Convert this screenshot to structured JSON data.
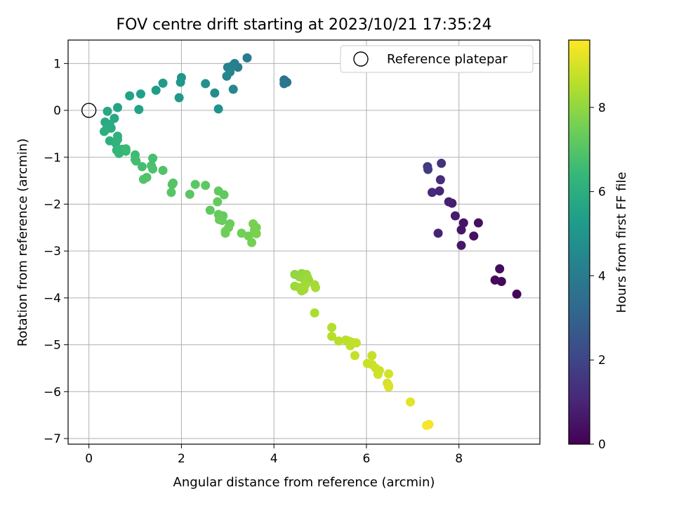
{
  "chart_data": {
    "type": "scatter",
    "title": "FOV centre drift starting at 2023/10/21 17:35:24",
    "xlabel": "Angular distance from reference (arcmin)",
    "ylabel": "Rotation from reference (arcmin)",
    "xlim": [
      -0.45,
      9.75
    ],
    "ylim": [
      -7.12,
      1.5
    ],
    "xticks": [
      0,
      2,
      4,
      6,
      8
    ],
    "xtick_labels": [
      "0",
      "2",
      "4",
      "6",
      "8"
    ],
    "yticks": [
      1,
      0,
      -1,
      -2,
      -3,
      -4,
      -5,
      -6,
      -7
    ],
    "ytick_labels": [
      "1",
      "0",
      "−1",
      "−2",
      "−3",
      "−4",
      "−5",
      "−6",
      "−7"
    ],
    "grid": true,
    "legend": {
      "placement": "top-right",
      "entries": [
        "Reference platepar"
      ]
    },
    "reference_point": {
      "x": 0,
      "y": 0
    },
    "colorbar": {
      "label": "Hours from first FF file",
      "colormap": "viridis",
      "range": [
        0,
        9.6
      ],
      "ticks": [
        0,
        2,
        4,
        6,
        8
      ],
      "tick_labels": [
        "0",
        "2",
        "4",
        "6",
        "8"
      ]
    },
    "colormap_stops": [
      "#440154",
      "#482878",
      "#3e4989",
      "#31688e",
      "#26828e",
      "#1f9e89",
      "#35b779",
      "#6ece58",
      "#b5de2b",
      "#fde725"
    ],
    "points": [
      {
        "x": 9.25,
        "y": -3.92,
        "h": 0.1
      },
      {
        "x": 8.92,
        "y": -3.65,
        "h": 0.2
      },
      {
        "x": 8.78,
        "y": -3.62,
        "h": 0.25
      },
      {
        "x": 8.88,
        "y": -3.38,
        "h": 0.3
      },
      {
        "x": 8.42,
        "y": -2.4,
        "h": 0.4
      },
      {
        "x": 8.32,
        "y": -2.68,
        "h": 0.45
      },
      {
        "x": 8.1,
        "y": -2.4,
        "h": 0.5
      },
      {
        "x": 8.05,
        "y": -2.55,
        "h": 0.55
      },
      {
        "x": 8.05,
        "y": -2.88,
        "h": 0.6
      },
      {
        "x": 7.92,
        "y": -2.25,
        "h": 0.7
      },
      {
        "x": 7.85,
        "y": -1.98,
        "h": 0.8
      },
      {
        "x": 7.78,
        "y": -1.95,
        "h": 0.85
      },
      {
        "x": 7.55,
        "y": -2.62,
        "h": 0.9
      },
      {
        "x": 7.58,
        "y": -1.72,
        "h": 1.0
      },
      {
        "x": 7.42,
        "y": -1.75,
        "h": 1.1
      },
      {
        "x": 7.6,
        "y": -1.48,
        "h": 1.2
      },
      {
        "x": 7.62,
        "y": -1.13,
        "h": 1.4
      },
      {
        "x": 7.32,
        "y": -1.2,
        "h": 1.6
      },
      {
        "x": 7.33,
        "y": -1.26,
        "h": 1.7
      },
      {
        "x": 4.22,
        "y": 0.65,
        "h": 3.6
      },
      {
        "x": 4.28,
        "y": 0.6,
        "h": 3.7
      },
      {
        "x": 4.22,
        "y": 0.57,
        "h": 3.8
      },
      {
        "x": 3.42,
        "y": 1.12,
        "h": 4.0
      },
      {
        "x": 3.22,
        "y": 0.92,
        "h": 4.1
      },
      {
        "x": 3.15,
        "y": 1.0,
        "h": 4.15
      },
      {
        "x": 3.1,
        "y": 0.95,
        "h": 4.2
      },
      {
        "x": 3.0,
        "y": 0.92,
        "h": 4.3
      },
      {
        "x": 3.05,
        "y": 0.82,
        "h": 4.35
      },
      {
        "x": 2.98,
        "y": 0.73,
        "h": 4.4
      },
      {
        "x": 3.12,
        "y": 0.45,
        "h": 4.5
      },
      {
        "x": 2.72,
        "y": 0.37,
        "h": 4.7
      },
      {
        "x": 2.52,
        "y": 0.57,
        "h": 4.8
      },
      {
        "x": 2.8,
        "y": 0.03,
        "h": 4.9
      },
      {
        "x": 2.0,
        "y": 0.7,
        "h": 5.0
      },
      {
        "x": 1.98,
        "y": 0.6,
        "h": 5.05
      },
      {
        "x": 1.95,
        "y": 0.27,
        "h": 5.1
      },
      {
        "x": 1.6,
        "y": 0.58,
        "h": 5.2
      },
      {
        "x": 1.45,
        "y": 0.43,
        "h": 5.3
      },
      {
        "x": 1.12,
        "y": 0.35,
        "h": 5.4
      },
      {
        "x": 0.88,
        "y": 0.31,
        "h": 5.5
      },
      {
        "x": 1.08,
        "y": 0.02,
        "h": 5.55
      },
      {
        "x": 0.62,
        "y": 0.06,
        "h": 5.6
      },
      {
        "x": 0.4,
        "y": -0.02,
        "h": 5.7
      },
      {
        "x": 0.55,
        "y": -0.17,
        "h": 5.75
      },
      {
        "x": 0.35,
        "y": -0.25,
        "h": 5.8
      },
      {
        "x": 0.45,
        "y": -0.3,
        "h": 5.85
      },
      {
        "x": 0.48,
        "y": -0.38,
        "h": 5.9
      },
      {
        "x": 0.38,
        "y": -0.4,
        "h": 5.95
      },
      {
        "x": 0.33,
        "y": -0.45,
        "h": 6.0
      },
      {
        "x": 0.45,
        "y": -0.65,
        "h": 6.05
      },
      {
        "x": 0.62,
        "y": -0.55,
        "h": 6.1
      },
      {
        "x": 0.62,
        "y": -0.62,
        "h": 6.15
      },
      {
        "x": 0.58,
        "y": -0.7,
        "h": 6.2
      },
      {
        "x": 0.6,
        "y": -0.85,
        "h": 6.3
      },
      {
        "x": 0.65,
        "y": -0.92,
        "h": 6.35
      },
      {
        "x": 0.72,
        "y": -0.83,
        "h": 6.4
      },
      {
        "x": 0.8,
        "y": -0.87,
        "h": 6.45
      },
      {
        "x": 0.8,
        "y": -0.82,
        "h": 6.5
      },
      {
        "x": 1.0,
        "y": -0.95,
        "h": 6.55
      },
      {
        "x": 1.0,
        "y": -1.05,
        "h": 6.6
      },
      {
        "x": 1.02,
        "y": -1.08,
        "h": 6.65
      },
      {
        "x": 1.15,
        "y": -1.2,
        "h": 6.7
      },
      {
        "x": 1.38,
        "y": -1.02,
        "h": 6.75
      },
      {
        "x": 1.35,
        "y": -1.18,
        "h": 6.8
      },
      {
        "x": 1.38,
        "y": -1.25,
        "h": 6.85
      },
      {
        "x": 1.6,
        "y": -1.28,
        "h": 6.9
      },
      {
        "x": 1.25,
        "y": -1.43,
        "h": 6.92
      },
      {
        "x": 1.18,
        "y": -1.47,
        "h": 6.95
      },
      {
        "x": 1.82,
        "y": -1.55,
        "h": 7.0
      },
      {
        "x": 1.8,
        "y": -1.58,
        "h": 7.02
      },
      {
        "x": 1.78,
        "y": -1.75,
        "h": 7.05
      },
      {
        "x": 2.18,
        "y": -1.79,
        "h": 7.1
      },
      {
        "x": 2.3,
        "y": -1.58,
        "h": 7.12
      },
      {
        "x": 2.52,
        "y": -1.6,
        "h": 7.15
      },
      {
        "x": 2.62,
        "y": -2.13,
        "h": 7.2
      },
      {
        "x": 2.8,
        "y": -1.72,
        "h": 7.22
      },
      {
        "x": 2.92,
        "y": -1.8,
        "h": 7.25
      },
      {
        "x": 2.78,
        "y": -1.95,
        "h": 7.28
      },
      {
        "x": 2.8,
        "y": -2.22,
        "h": 7.3
      },
      {
        "x": 2.9,
        "y": -2.25,
        "h": 7.32
      },
      {
        "x": 2.82,
        "y": -2.33,
        "h": 7.35
      },
      {
        "x": 2.88,
        "y": -2.35,
        "h": 7.38
      },
      {
        "x": 3.05,
        "y": -2.42,
        "h": 7.4
      },
      {
        "x": 3.02,
        "y": -2.5,
        "h": 7.42
      },
      {
        "x": 2.95,
        "y": -2.58,
        "h": 7.45
      },
      {
        "x": 2.95,
        "y": -2.62,
        "h": 7.48
      },
      {
        "x": 3.3,
        "y": -2.62,
        "h": 7.5
      },
      {
        "x": 3.45,
        "y": -2.68,
        "h": 7.52
      },
      {
        "x": 3.52,
        "y": -2.82,
        "h": 7.55
      },
      {
        "x": 3.55,
        "y": -2.42,
        "h": 7.58
      },
      {
        "x": 3.58,
        "y": -2.55,
        "h": 7.6
      },
      {
        "x": 3.62,
        "y": -2.5,
        "h": 7.62
      },
      {
        "x": 3.62,
        "y": -2.63,
        "h": 7.65
      },
      {
        "x": 4.45,
        "y": -3.5,
        "h": 8.0
      },
      {
        "x": 4.6,
        "y": -3.48,
        "h": 8.02
      },
      {
        "x": 4.55,
        "y": -3.55,
        "h": 8.05
      },
      {
        "x": 4.7,
        "y": -3.5,
        "h": 8.08
      },
      {
        "x": 4.65,
        "y": -3.6,
        "h": 8.1
      },
      {
        "x": 4.75,
        "y": -3.62,
        "h": 8.12
      },
      {
        "x": 4.72,
        "y": -3.55,
        "h": 8.15
      },
      {
        "x": 4.45,
        "y": -3.75,
        "h": 8.18
      },
      {
        "x": 4.55,
        "y": -3.78,
        "h": 8.2
      },
      {
        "x": 4.6,
        "y": -3.85,
        "h": 8.22
      },
      {
        "x": 4.68,
        "y": -3.72,
        "h": 8.25
      },
      {
        "x": 4.65,
        "y": -3.82,
        "h": 8.28
      },
      {
        "x": 4.88,
        "y": -3.72,
        "h": 8.3
      },
      {
        "x": 4.9,
        "y": -3.78,
        "h": 8.32
      },
      {
        "x": 4.88,
        "y": -4.32,
        "h": 8.4
      },
      {
        "x": 5.25,
        "y": -4.63,
        "h": 8.5
      },
      {
        "x": 5.25,
        "y": -4.82,
        "h": 8.55
      },
      {
        "x": 5.4,
        "y": -4.92,
        "h": 8.6
      },
      {
        "x": 5.55,
        "y": -4.9,
        "h": 8.62
      },
      {
        "x": 5.62,
        "y": -4.92,
        "h": 8.65
      },
      {
        "x": 5.65,
        "y": -5.02,
        "h": 8.68
      },
      {
        "x": 5.7,
        "y": -4.95,
        "h": 8.7
      },
      {
        "x": 5.78,
        "y": -4.96,
        "h": 8.72
      },
      {
        "x": 5.75,
        "y": -5.23,
        "h": 8.75
      },
      {
        "x": 6.12,
        "y": -5.23,
        "h": 8.8
      },
      {
        "x": 6.02,
        "y": -5.4,
        "h": 8.82
      },
      {
        "x": 6.12,
        "y": -5.42,
        "h": 8.85
      },
      {
        "x": 6.2,
        "y": -5.5,
        "h": 8.88
      },
      {
        "x": 6.28,
        "y": -5.55,
        "h": 8.9
      },
      {
        "x": 6.25,
        "y": -5.63,
        "h": 8.92
      },
      {
        "x": 6.48,
        "y": -5.62,
        "h": 8.95
      },
      {
        "x": 6.45,
        "y": -5.82,
        "h": 9.0
      },
      {
        "x": 6.48,
        "y": -5.87,
        "h": 9.05
      },
      {
        "x": 6.48,
        "y": -5.9,
        "h": 9.08
      },
      {
        "x": 6.95,
        "y": -6.22,
        "h": 9.2
      },
      {
        "x": 7.35,
        "y": -6.7,
        "h": 9.4
      },
      {
        "x": 7.3,
        "y": -6.72,
        "h": 9.5
      }
    ]
  }
}
